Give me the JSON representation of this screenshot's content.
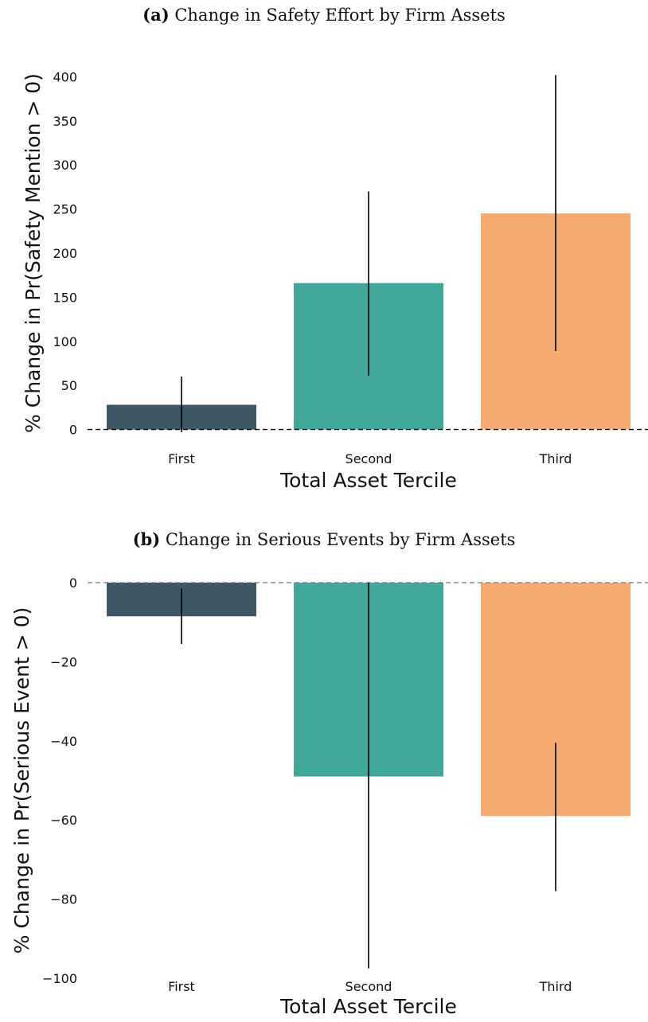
{
  "chart_data": [
    {
      "type": "bar",
      "panel_label": "(a)",
      "title": "Change in Safety Effort by Firm Assets",
      "xlabel": "Total Asset Tercile",
      "ylabel": "% Change in Pr(Safety Mention > 0)",
      "categories": [
        "First",
        "Second",
        "Third"
      ],
      "values": [
        28,
        166,
        245
      ],
      "error_low": [
        -3,
        61,
        89
      ],
      "error_high": [
        60,
        270,
        402
      ],
      "colors": [
        "#3d5765",
        "#40a899",
        "#f4aa70"
      ],
      "ylim": [
        -4,
        404
      ],
      "yticks": [
        0,
        50,
        100,
        150,
        200,
        250,
        300,
        350,
        400
      ],
      "ytick_labels": [
        "0",
        "50",
        "100",
        "150",
        "200",
        "250",
        "300",
        "350",
        "400"
      ],
      "reference_line": 0,
      "grid": false
    },
    {
      "type": "bar",
      "panel_label": "(b)",
      "title": "Change in Serious Events by Firm Assets",
      "xlabel": "Total Asset Tercile",
      "ylabel": "% Change in Pr(Serious Event > 0)",
      "categories": [
        "First",
        "Second",
        "Third"
      ],
      "values": [
        -8.5,
        -49,
        -59
      ],
      "error_low": [
        -15.5,
        -97.5,
        -78
      ],
      "error_high": [
        -1.5,
        0,
        -40.5
      ],
      "colors": [
        "#3d5765",
        "#40a899",
        "#f4aa70"
      ],
      "ylim": [
        -100,
        0
      ],
      "yticks": [
        0,
        -20,
        -40,
        -60,
        -80,
        -100
      ],
      "ytick_labels": [
        "0",
        "−20",
        "−40",
        "−60",
        "−80",
        "−100"
      ],
      "reference_line": 0,
      "grid": false
    }
  ]
}
